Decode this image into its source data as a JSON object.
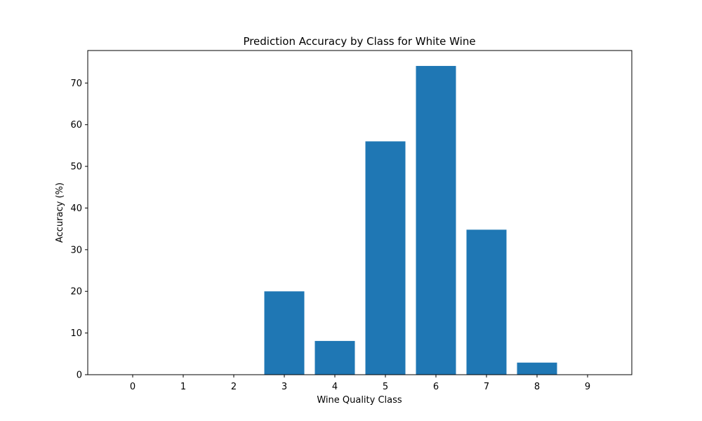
{
  "chart_data": {
    "type": "bar",
    "title": "Prediction Accuracy by Class for White Wine",
    "xlabel": "Wine Quality Class",
    "ylabel": "Accuracy (%)",
    "categories": [
      "0",
      "1",
      "2",
      "3",
      "4",
      "5",
      "6",
      "7",
      "8",
      "9"
    ],
    "values": [
      0,
      0,
      0,
      20.0,
      8.1,
      56.0,
      74.1,
      34.8,
      2.9,
      0
    ],
    "ylim": [
      0,
      77.8
    ],
    "yticks": [
      0,
      10,
      20,
      30,
      40,
      50,
      60,
      70
    ],
    "grid": false,
    "legend": "none",
    "bar_color": "#1f77b4"
  }
}
